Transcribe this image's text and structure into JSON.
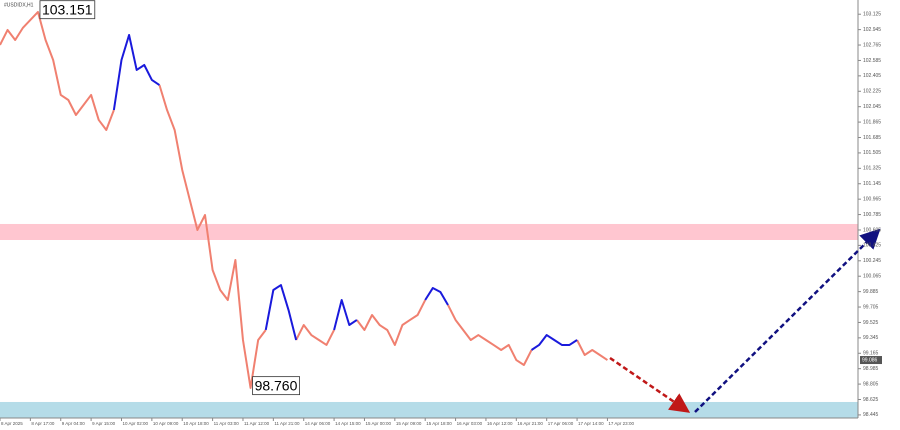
{
  "chart_data": {
    "type": "line",
    "title": "#USDIDX,H1",
    "xlim": [
      0,
      113
    ],
    "ylim": [
      98.409,
      103.291
    ],
    "xticks": [
      {
        "value": 0,
        "label": "8 Apr 2025"
      },
      {
        "value": 4,
        "label": "8 Apr 17:00"
      },
      {
        "value": 8,
        "label": "9 Apr 04:00"
      },
      {
        "value": 12,
        "label": "9 Apr 15:00"
      },
      {
        "value": 16,
        "label": "10 Apr 02:00"
      },
      {
        "value": 20,
        "label": "10 Apr 09:00"
      },
      {
        "value": 24,
        "label": "10 Apr 18:00"
      },
      {
        "value": 28,
        "label": "11 Apr 03:00"
      },
      {
        "value": 32,
        "label": "11 Apr 12:00"
      },
      {
        "value": 36,
        "label": "11 Apr 21:00"
      },
      {
        "value": 40,
        "label": "14 Apr 06:00"
      },
      {
        "value": 44,
        "label": "14 Apr 15:00"
      },
      {
        "value": 48,
        "label": "15 Apr 00:00"
      },
      {
        "value": 52,
        "label": "15 Apr 09:00"
      },
      {
        "value": 56,
        "label": "15 Apr 18:00"
      },
      {
        "value": 60,
        "label": "16 Apr 03:00"
      },
      {
        "value": 64,
        "label": "16 Apr 12:00"
      },
      {
        "value": 68,
        "label": "16 Apr 21:00"
      },
      {
        "value": 72,
        "label": "17 Apr 06:00"
      },
      {
        "value": 76,
        "label": "17 Apr 14:00"
      },
      {
        "value": 80,
        "label": "17 Apr 23:00"
      }
    ],
    "yticks": [
      103.125,
      102.945,
      102.765,
      102.585,
      102.405,
      102.225,
      102.045,
      101.865,
      101.685,
      101.505,
      101.325,
      101.145,
      100.965,
      100.785,
      100.605,
      100.425,
      100.245,
      100.065,
      99.885,
      99.705,
      99.525,
      99.345,
      99.165,
      98.985,
      98.805,
      98.625,
      98.445
    ],
    "series": [
      {
        "color": "#f08070",
        "values": [
          102.766,
          102.941,
          102.824,
          102.964,
          103.058,
          103.151,
          102.824,
          102.59,
          102.182,
          102.123,
          101.948,
          102.065,
          102.182,
          101.89,
          101.773,
          102.006,
          null,
          null,
          null,
          null,
          null,
          102.298,
          102.006,
          101.773,
          101.306,
          100.955,
          100.605,
          100.78,
          100.138,
          99.904,
          99.787,
          100.254,
          99.32,
          98.76,
          99.32,
          99.437,
          null,
          null,
          null,
          99.32,
          99.495,
          99.378,
          99.32,
          99.262,
          99.437,
          null,
          null,
          99.554,
          99.437,
          99.612,
          99.495,
          99.437,
          99.262,
          99.495,
          99.554,
          99.612,
          99.787,
          null,
          null,
          99.729,
          99.554,
          99.437,
          99.32,
          99.378,
          99.32,
          99.262,
          99.203,
          99.262,
          99.086,
          99.028,
          99.203,
          null,
          null,
          null,
          null,
          null,
          99.32,
          99.145,
          99.203,
          99.145,
          99.086
        ]
      },
      {
        "color": "#1a1adc",
        "values": [
          null,
          null,
          null,
          null,
          null,
          null,
          null,
          null,
          null,
          null,
          null,
          null,
          null,
          null,
          null,
          102.006,
          102.59,
          102.882,
          102.474,
          102.532,
          102.357,
          102.298,
          null,
          null,
          null,
          null,
          null,
          null,
          null,
          null,
          null,
          null,
          null,
          null,
          null,
          99.437,
          99.904,
          99.962,
          99.67,
          99.32,
          null,
          null,
          null,
          null,
          99.437,
          99.787,
          99.495,
          99.554,
          null,
          null,
          null,
          null,
          null,
          null,
          null,
          null,
          99.787,
          99.927,
          99.881,
          99.729,
          null,
          null,
          null,
          null,
          null,
          null,
          null,
          null,
          null,
          null,
          99.203,
          99.262,
          99.378,
          99.32,
          99.262,
          99.262,
          99.32,
          null,
          null,
          null,
          null
        ]
      }
    ],
    "zones": [
      {
        "from": 100.488,
        "to": 100.675,
        "color": "#ffc0cb"
      },
      {
        "from": 98.409,
        "to": 98.596,
        "color": "#add8e6"
      }
    ],
    "annotations": [
      {
        "x": 5,
        "value": 103.151,
        "label": "103.151"
      },
      {
        "x": 33,
        "value": 98.76,
        "label": "98.760"
      }
    ],
    "current_price": 99.086
  }
}
